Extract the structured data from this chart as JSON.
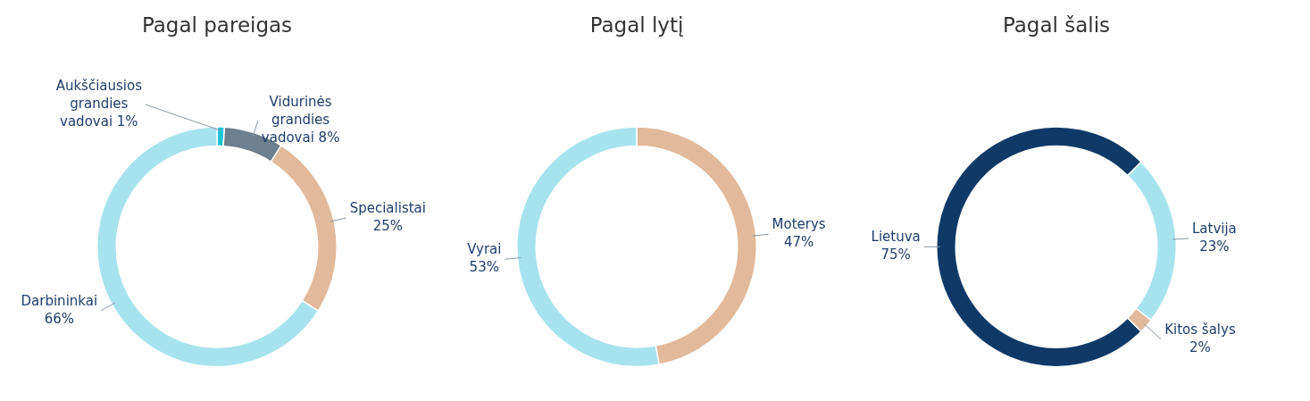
{
  "chart_data": [
    {
      "type": "donut",
      "title": "Pagal pareigas",
      "categories": [
        "Aukščiausios grandies vadovai",
        "Vidurinės grandies vadovai",
        "Specialistai",
        "Darbininkai"
      ],
      "values": [
        1,
        8,
        25,
        66
      ],
      "value_labels": [
        "1%",
        "8%",
        "25%",
        "66%"
      ],
      "colors": [
        "#1fc3d6",
        "#6e7f8d",
        "#e2b99a",
        "#a6e3ee"
      ]
    },
    {
      "type": "donut",
      "title": "Pagal lytį",
      "categories": [
        "Moterys",
        "Vyrai"
      ],
      "values": [
        47,
        53
      ],
      "value_labels": [
        "47%",
        "53%"
      ],
      "colors": [
        "#e2b99a",
        "#a6e3ee"
      ]
    },
    {
      "type": "donut",
      "title": "Pagal šalis",
      "categories": [
        "Lietuva",
        "Latvija",
        "Kitos šalys"
      ],
      "values": [
        75,
        23,
        2
      ],
      "value_labels": [
        "75%",
        "23%",
        "2%"
      ],
      "colors": [
        "#0f3a68",
        "#a6e3ee",
        "#e2b99a"
      ]
    }
  ]
}
